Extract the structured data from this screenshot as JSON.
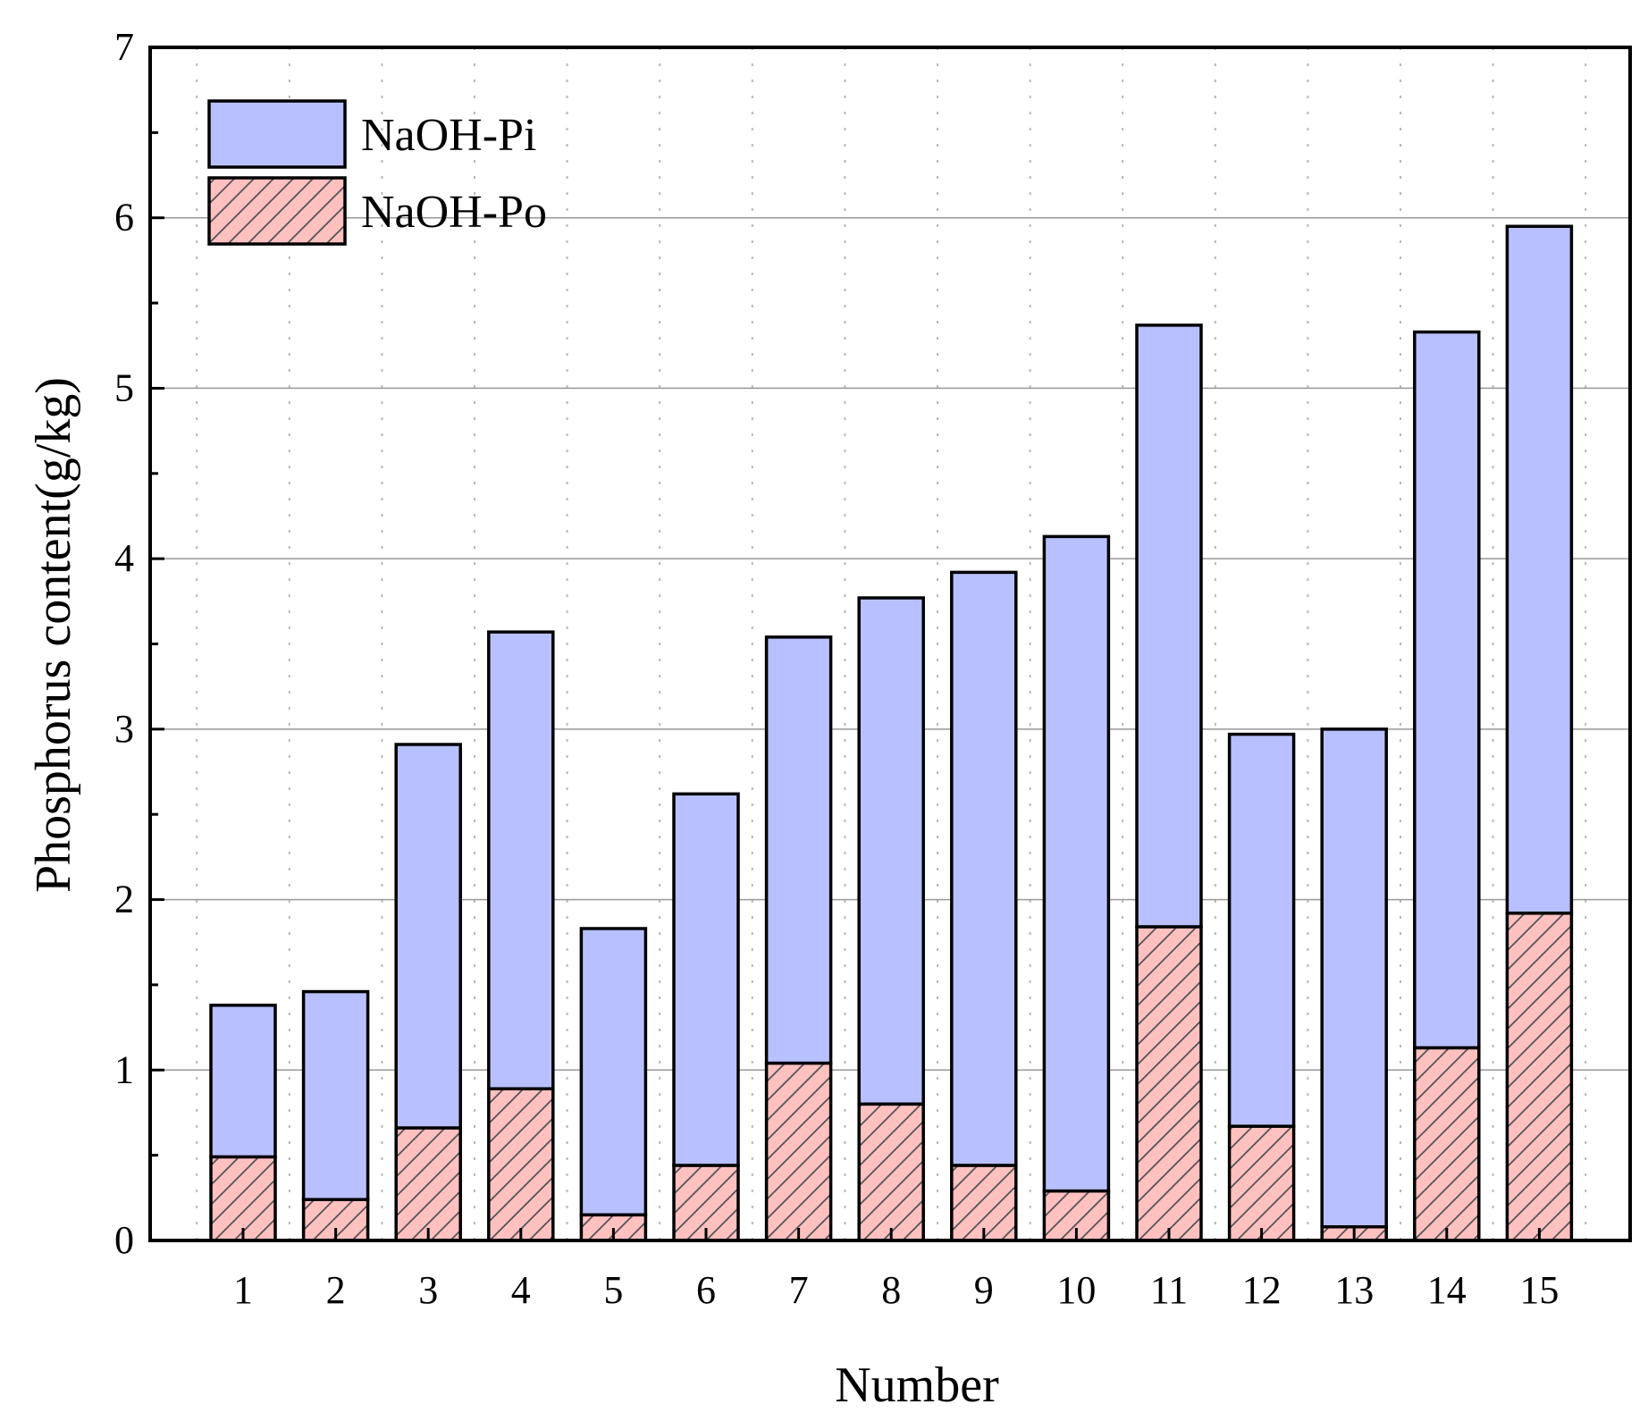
{
  "chart_data": {
    "type": "bar",
    "stacked": true,
    "title": "",
    "xlabel": "Number",
    "ylabel": "Phosphorus content(g/kg)",
    "ylim": [
      0,
      7
    ],
    "yticks": [
      "0",
      "1",
      "2",
      "3",
      "4",
      "5",
      "6",
      "7"
    ],
    "categories": [
      "1",
      "2",
      "3",
      "4",
      "5",
      "6",
      "7",
      "8",
      "9",
      "10",
      "11",
      "12",
      "13",
      "14",
      "15"
    ],
    "series": [
      {
        "name": "NaOH-Po",
        "color": "#ffc0c0",
        "pattern": "diagonal-hatch",
        "values": [
          0.49,
          0.24,
          0.66,
          0.89,
          0.15,
          0.44,
          1.04,
          0.8,
          0.44,
          0.29,
          1.84,
          0.67,
          0.08,
          1.13,
          1.92
        ]
      },
      {
        "name": "NaOH-Pi",
        "color": "#b8c0ff",
        "pattern": "solid",
        "values": [
          0.89,
          1.22,
          2.25,
          2.68,
          1.68,
          2.18,
          2.5,
          2.97,
          3.48,
          3.84,
          3.53,
          2.3,
          2.92,
          4.2,
          4.03
        ]
      }
    ],
    "totals": [
      1.38,
      1.46,
      2.91,
      3.57,
      1.83,
      2.62,
      3.54,
      3.77,
      3.92,
      4.13,
      5.37,
      2.97,
      3.0,
      5.33,
      5.95
    ],
    "grid": true,
    "legend": {
      "position": "top-left",
      "entries": [
        "NaOH-Pi",
        "NaOH-Po"
      ]
    }
  }
}
